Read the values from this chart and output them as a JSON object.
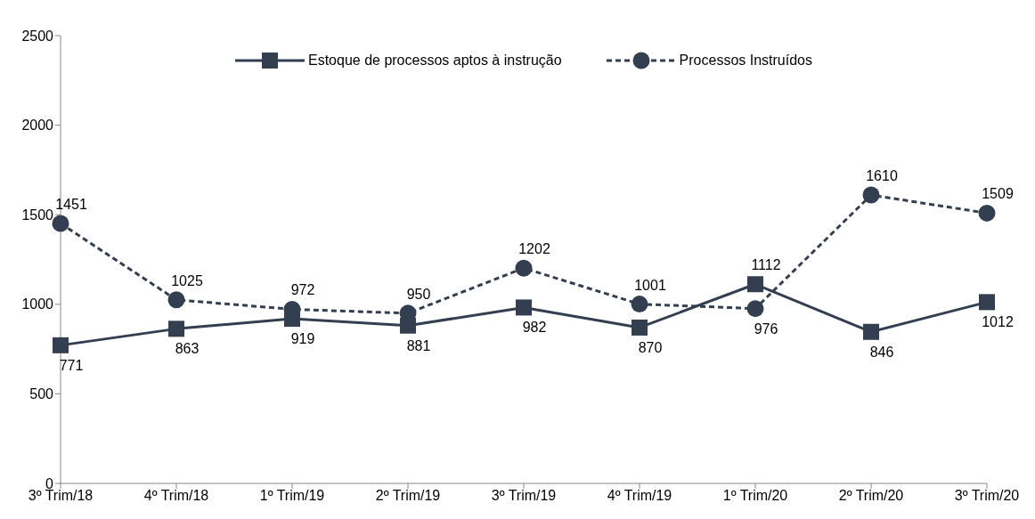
{
  "chart_data": {
    "type": "line",
    "categories": [
      "3º Trim/18",
      "4º Trim/18",
      "1º Trim/19",
      "2º Trim/19",
      "3º Trim/19",
      "4º Trim/19",
      "1º Trim/20",
      "2º Trim/20",
      "3º Trim/20"
    ],
    "series": [
      {
        "name": "Estoque de processos aptos à instrução",
        "color": "#333f50",
        "marker": "square",
        "line_style": "solid",
        "values": [
          771,
          863,
          919,
          881,
          982,
          870,
          1112,
          846,
          1012
        ]
      },
      {
        "name": "Processos Instruídos",
        "color": "#333f50",
        "marker": "circle",
        "line_style": "dashed",
        "values": [
          1451,
          1025,
          972,
          950,
          1202,
          1001,
          976,
          1610,
          1509
        ]
      }
    ],
    "ylim": [
      0,
      2500
    ],
    "yticks": [
      0,
      500,
      1000,
      1500,
      2000,
      2500
    ],
    "grid": false,
    "legend": "top",
    "data_labels": true
  }
}
